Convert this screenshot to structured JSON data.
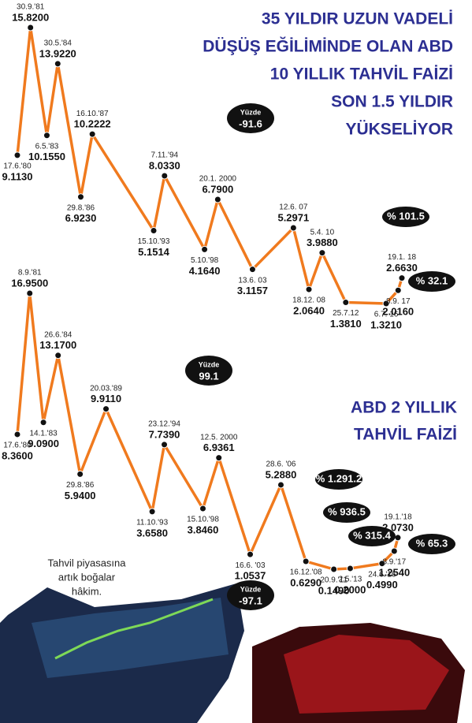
{
  "chart_data": [
    {
      "type": "line",
      "title": [
        "35 YILDIR UZUN VADELİ",
        "DÜŞÜŞ EĞİLİMİNDE OLAN ABD",
        "10 YILLIK TAHVİL FAİZİ",
        "SON 1.5 YILDIR",
        "YÜKSELİYOR"
      ],
      "x": [
        "17.6.'80",
        "30.9.'81",
        "6.5.'83",
        "30.5.'84",
        "29.8.'86",
        "16.10.'87",
        "15.10.'93",
        "7.11.'94",
        "5.10.'98",
        "20.1. 2000",
        "13.6. 03",
        "12.6. 07",
        "18.12. 08",
        "5.4. 10",
        "25.7.12",
        "6.7. 16",
        "8.9. 17",
        "19.1. 18"
      ],
      "values": [
        9.113,
        15.82,
        10.155,
        13.922,
        6.923,
        10.2222,
        5.1514,
        8.033,
        4.164,
        6.79,
        3.1157,
        5.2971,
        2.064,
        3.988,
        1.381,
        1.321,
        2.016,
        2.663
      ],
      "value_labels": [
        "9.1130",
        "15.8200",
        "10.1550",
        "13.9220",
        "6.9230",
        "10.2222",
        "5.1514",
        "8.0330",
        "4.1640",
        "6.7900",
        "3.1157",
        "5.2971",
        "2.0640",
        "3.9880",
        "1.3810",
        "1.3210",
        "2.0160",
        "2.6630"
      ],
      "color": "#f07a1e",
      "annotations": [
        [
          "Yüzde",
          "-91.6"
        ],
        [
          "% 101.5"
        ],
        [
          "% 32.1"
        ]
      ]
    },
    {
      "type": "line",
      "title": [
        "ABD 2 YILLIK",
        "TAHVİL FAİZİ"
      ],
      "x": [
        "17.6.'80",
        "8.9.'81",
        "14.1.'83",
        "26.6.'84",
        "29.8.'86",
        "20.03.'89",
        "11.10.'93",
        "23.12.'94",
        "15.10.'98",
        "12.5. 2000",
        "16.6. '03",
        "28.6. '06",
        "16.12.'08",
        "20.9.'11",
        "2.5.'13",
        "24.6.'16",
        "8.9.'17",
        "19.1.'18"
      ],
      "values": [
        8.36,
        16.95,
        9.09,
        13.17,
        5.94,
        9.911,
        3.658,
        7.739,
        3.846,
        6.9361,
        1.0537,
        5.288,
        0.629,
        0.149,
        0.2,
        0.499,
        1.254,
        2.073
      ],
      "value_labels": [
        "8.3600",
        "16.9500",
        "9.0900",
        "13.1700",
        "5.9400",
        "9.9110",
        "3.6580",
        "7.7390",
        "3.8460",
        "6.9361",
        "1.0537",
        "5.2880",
        "0.6290",
        "0.1490",
        "0.2000",
        "0.4990",
        "1.2540",
        "2.0730"
      ],
      "color": "#f07a1e",
      "annotations": [
        [
          "Yüzde",
          "99.1"
        ],
        [
          "Yüzde",
          "-97.1"
        ],
        [
          "% 1.291.2"
        ],
        [
          "% 936.5"
        ],
        [
          "% 315.4"
        ],
        [
          "% 65.3"
        ]
      ]
    }
  ],
  "caption": [
    "Tahvil piyasasına",
    "artık boğalar",
    "hâkim."
  ]
}
